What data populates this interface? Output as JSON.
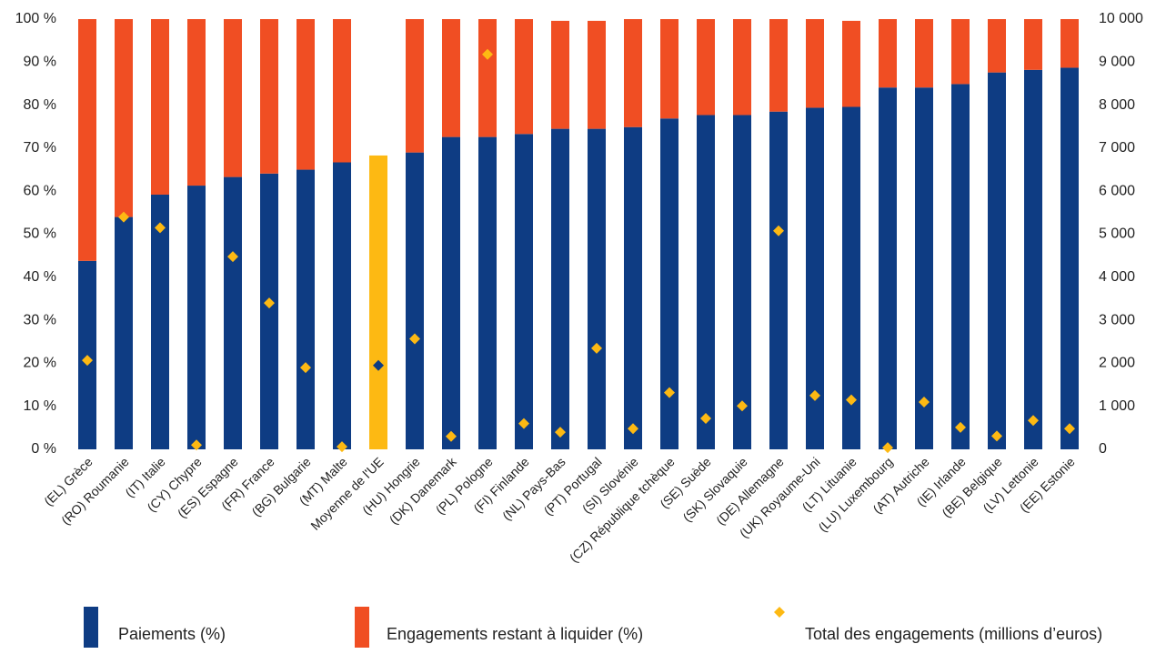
{
  "chart_data": {
    "type": "bar",
    "stacked": true,
    "categories": [
      "(EL) Grèce",
      "(RO) Roumanie",
      "(IT) Italie",
      "(CY) Chypre",
      "(ES) Espagne",
      "(FR) France",
      "(BG) Bulgarie",
      "(MT) Malte",
      "Moyenne de l'UE",
      "(HU) Hongrie",
      "(DK) Danemark",
      "(PL) Pologne",
      "(FI) Finlande",
      "(NL) Pays-Bas",
      "(PT) Portugal",
      "(SI) Slovénie",
      "(CZ) République tchèque",
      "(SE) Suède",
      "(SK) Slovaquie",
      "(DE) Allemagne",
      "(UK) Royaume-Uni",
      "(LT) Lituanie",
      "(LU) Luxembourg",
      "(AT) Autriche",
      "(IE) Irlande",
      "(BE) Belgique",
      "(LV) Lettonie",
      "(EE) Estonie"
    ],
    "series": [
      {
        "name": "Paiements (%)",
        "color": "#0e3c83",
        "colors": [
          "#0e3c83",
          "#0e3c83",
          "#0e3c83",
          "#0e3c83",
          "#0e3c83",
          "#0e3c83",
          "#0e3c83",
          "#0e3c83",
          "#fdb913",
          "#0e3c83",
          "#0e3c83",
          "#0e3c83",
          "#0e3c83",
          "#0e3c83",
          "#0e3c83",
          "#0e3c83",
          "#0e3c83",
          "#0e3c83",
          "#0e3c83",
          "#0e3c83",
          "#0e3c83",
          "#0e3c83",
          "#0e3c83",
          "#0e3c83",
          "#0e3c83",
          "#0e3c83",
          "#0e3c83",
          "#0e3c83"
        ],
        "values": [
          43.8,
          54,
          59.2,
          61.3,
          63.3,
          64.1,
          65,
          66.7,
          68.3,
          69,
          72.6,
          72.6,
          73.3,
          74.5,
          74.5,
          74.9,
          76.9,
          77.7,
          77.7,
          78.5,
          79.4,
          79.6,
          84.1,
          84.1,
          84.9,
          87.6,
          88.2,
          88.7
        ]
      },
      {
        "name": "Engagements restant à liquider (%)",
        "color": "#f04e23",
        "values": [
          56.2,
          46,
          40.8,
          38.7,
          36.7,
          35.9,
          35,
          33.3,
          null,
          31,
          27.4,
          27.4,
          26.7,
          25.1,
          25.1,
          25.1,
          23.1,
          22.3,
          22.3,
          21.5,
          20.6,
          20,
          15.9,
          15.9,
          15.1,
          12.4,
          11.8,
          11.3
        ]
      },
      {
        "name": "Total des engagements (millions d’euros)",
        "color": "#fdb913",
        "axis": "y2",
        "marker": "diamond",
        "colors": [
          "#fdb913",
          "#fdb913",
          "#fdb913",
          "#fdb913",
          "#fdb913",
          "#fdb913",
          "#fdb913",
          "#fdb913",
          "#0e3c83",
          "#fdb913",
          "#fdb913",
          "#fdb913",
          "#fdb913",
          "#fdb913",
          "#fdb913",
          "#fdb913",
          "#fdb913",
          "#fdb913",
          "#fdb913",
          "#fdb913",
          "#fdb913",
          "#fdb913",
          "#fdb913",
          "#fdb913",
          "#fdb913",
          "#fdb913",
          "#fdb913",
          "#fdb913"
        ],
        "values": [
          2070,
          5400,
          5150,
          100,
          4480,
          3400,
          1900,
          60,
          1950,
          2570,
          300,
          9180,
          600,
          400,
          2350,
          480,
          1320,
          720,
          1010,
          5080,
          1250,
          1150,
          40,
          1100,
          510,
          310,
          670,
          480
        ]
      }
    ],
    "ylim": [
      0,
      100
    ],
    "yticks": [
      {
        "value": 0,
        "label": "0 %"
      },
      {
        "value": 10,
        "label": "10 %"
      },
      {
        "value": 20,
        "label": "20 %"
      },
      {
        "value": 30,
        "label": "30 %"
      },
      {
        "value": 40,
        "label": "40 %"
      },
      {
        "value": 50,
        "label": "50 %"
      },
      {
        "value": 60,
        "label": "60 %"
      },
      {
        "value": 70,
        "label": "70 %"
      },
      {
        "value": 80,
        "label": "80 %"
      },
      {
        "value": 90,
        "label": "90 %"
      },
      {
        "value": 100,
        "label": "100 %"
      }
    ],
    "y2lim": [
      0,
      10000
    ],
    "y2ticks": [
      0,
      {
        "value": 1000,
        "label": "1 000"
      },
      {
        "value": 2000,
        "label": "2 000"
      },
      {
        "value": 3000,
        "label": "3 000"
      },
      {
        "value": 4000,
        "label": "4 000"
      },
      {
        "value": 5000,
        "label": "5 000"
      },
      {
        "value": 6000,
        "label": "6 000"
      },
      {
        "value": 7000,
        "label": "7 000"
      },
      {
        "value": 8000,
        "label": "8 000"
      },
      {
        "value": 9000,
        "label": "9 000"
      },
      {
        "value": 10000,
        "label": "10 000"
      }
    ],
    "grid": false
  }
}
